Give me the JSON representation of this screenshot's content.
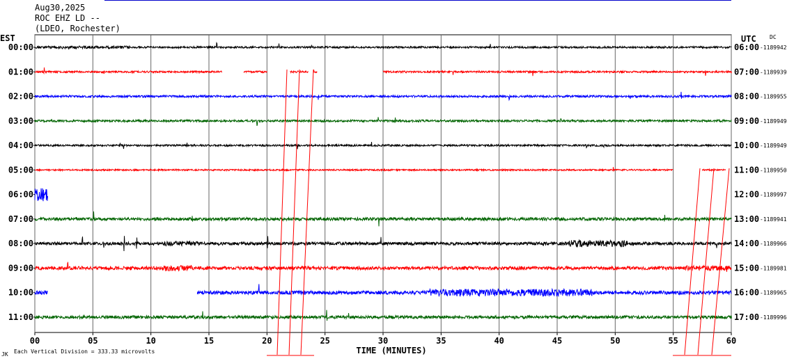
{
  "header": {
    "date": "Aug30,2025",
    "station": "ROC EHZ LD --",
    "network": "(LDEO, Rochester)",
    "left_zone": "EST",
    "right_zone": "UTC",
    "dc_label": "DC"
  },
  "footer": {
    "scale_note": "Each Vertical Division =  333.33 microvolts",
    "corner_mark": "JK"
  },
  "chart_data": {
    "type": "line",
    "xlabel": "TIME (MINUTES)",
    "xlim": [
      0,
      60
    ],
    "x_ticks": [
      "00",
      "05",
      "10",
      "15",
      "20",
      "25",
      "30",
      "35",
      "40",
      "45",
      "50",
      "55",
      "60"
    ],
    "grid": true,
    "colors": [
      "#000000",
      "#ff0000",
      "#0000ff",
      "#006400"
    ],
    "rows": [
      {
        "est": "00:00",
        "utc": "06:00",
        "dc": "-1189942",
        "color": "#000000",
        "segments": [
          [
            0,
            60
          ]
        ],
        "noise": 0.6,
        "spans": [
          [
            0,
            8.3,
            1.6
          ]
        ]
      },
      {
        "est": "01:00",
        "utc": "07:00",
        "dc": "-1189939",
        "color": "#ff0000",
        "segments": [
          [
            0,
            16.1
          ],
          [
            18,
            20
          ],
          [
            22,
            23.5
          ],
          [
            24,
            24.3
          ],
          [
            30,
            60
          ]
        ],
        "noise": 0.6,
        "spans": []
      },
      {
        "est": "02:00",
        "utc": "08:00",
        "dc": "-1189955",
        "color": "#0000ff",
        "segments": [
          [
            0,
            60
          ]
        ],
        "noise": 0.7,
        "spans": []
      },
      {
        "est": "03:00",
        "utc": "09:00",
        "dc": "-1189949",
        "color": "#006400",
        "segments": [
          [
            0,
            60
          ]
        ],
        "noise": 0.7,
        "spans": []
      },
      {
        "est": "04:00",
        "utc": "10:00",
        "dc": "-1189949",
        "color": "#000000",
        "segments": [
          [
            0,
            60
          ]
        ],
        "noise": 0.6,
        "spans": []
      },
      {
        "est": "05:00",
        "utc": "11:00",
        "dc": "-1189950",
        "color": "#ff0000",
        "segments": [
          [
            0,
            55
          ],
          [
            57.5,
            59.5
          ]
        ],
        "noise": 0.5,
        "spans": []
      },
      {
        "est": "06:00",
        "utc": "12:00",
        "dc": "-1189997",
        "color": "#0000ff",
        "segments": [
          [
            0,
            1.1
          ]
        ],
        "noise": 1.5,
        "spans": [
          [
            0,
            1.1,
            3.0
          ]
        ]
      },
      {
        "est": "07:00",
        "utc": "13:00",
        "dc": "-1189941",
        "color": "#006400",
        "segments": [
          [
            0,
            60
          ]
        ],
        "noise": 1.0,
        "spans": []
      },
      {
        "est": "08:00",
        "utc": "14:00",
        "dc": "-1189966",
        "color": "#000000",
        "segments": [
          [
            0,
            60
          ]
        ],
        "noise": 1.0,
        "spans": [
          [
            46,
            51,
            2.2
          ],
          [
            11,
            14,
            1.6
          ]
        ]
      },
      {
        "est": "09:00",
        "utc": "15:00",
        "dc": "-1189981",
        "color": "#ff0000",
        "segments": [
          [
            0,
            60
          ]
        ],
        "noise": 1.1,
        "spans": [
          [
            11,
            13.5,
            1.8
          ],
          [
            56,
            60,
            1.5
          ]
        ]
      },
      {
        "est": "10:00",
        "utc": "16:00",
        "dc": "-1189965",
        "color": "#0000ff",
        "segments": [
          [
            0,
            1.1
          ],
          [
            14,
            60
          ]
        ],
        "noise": 1.2,
        "spans": [
          [
            34,
            48,
            2.0
          ]
        ]
      },
      {
        "est": "11:00",
        "utc": "17:00",
        "dc": "-1189996",
        "color": "#006400",
        "segments": [
          [
            0,
            60
          ]
        ],
        "noise": 1.0,
        "spans": []
      }
    ]
  }
}
